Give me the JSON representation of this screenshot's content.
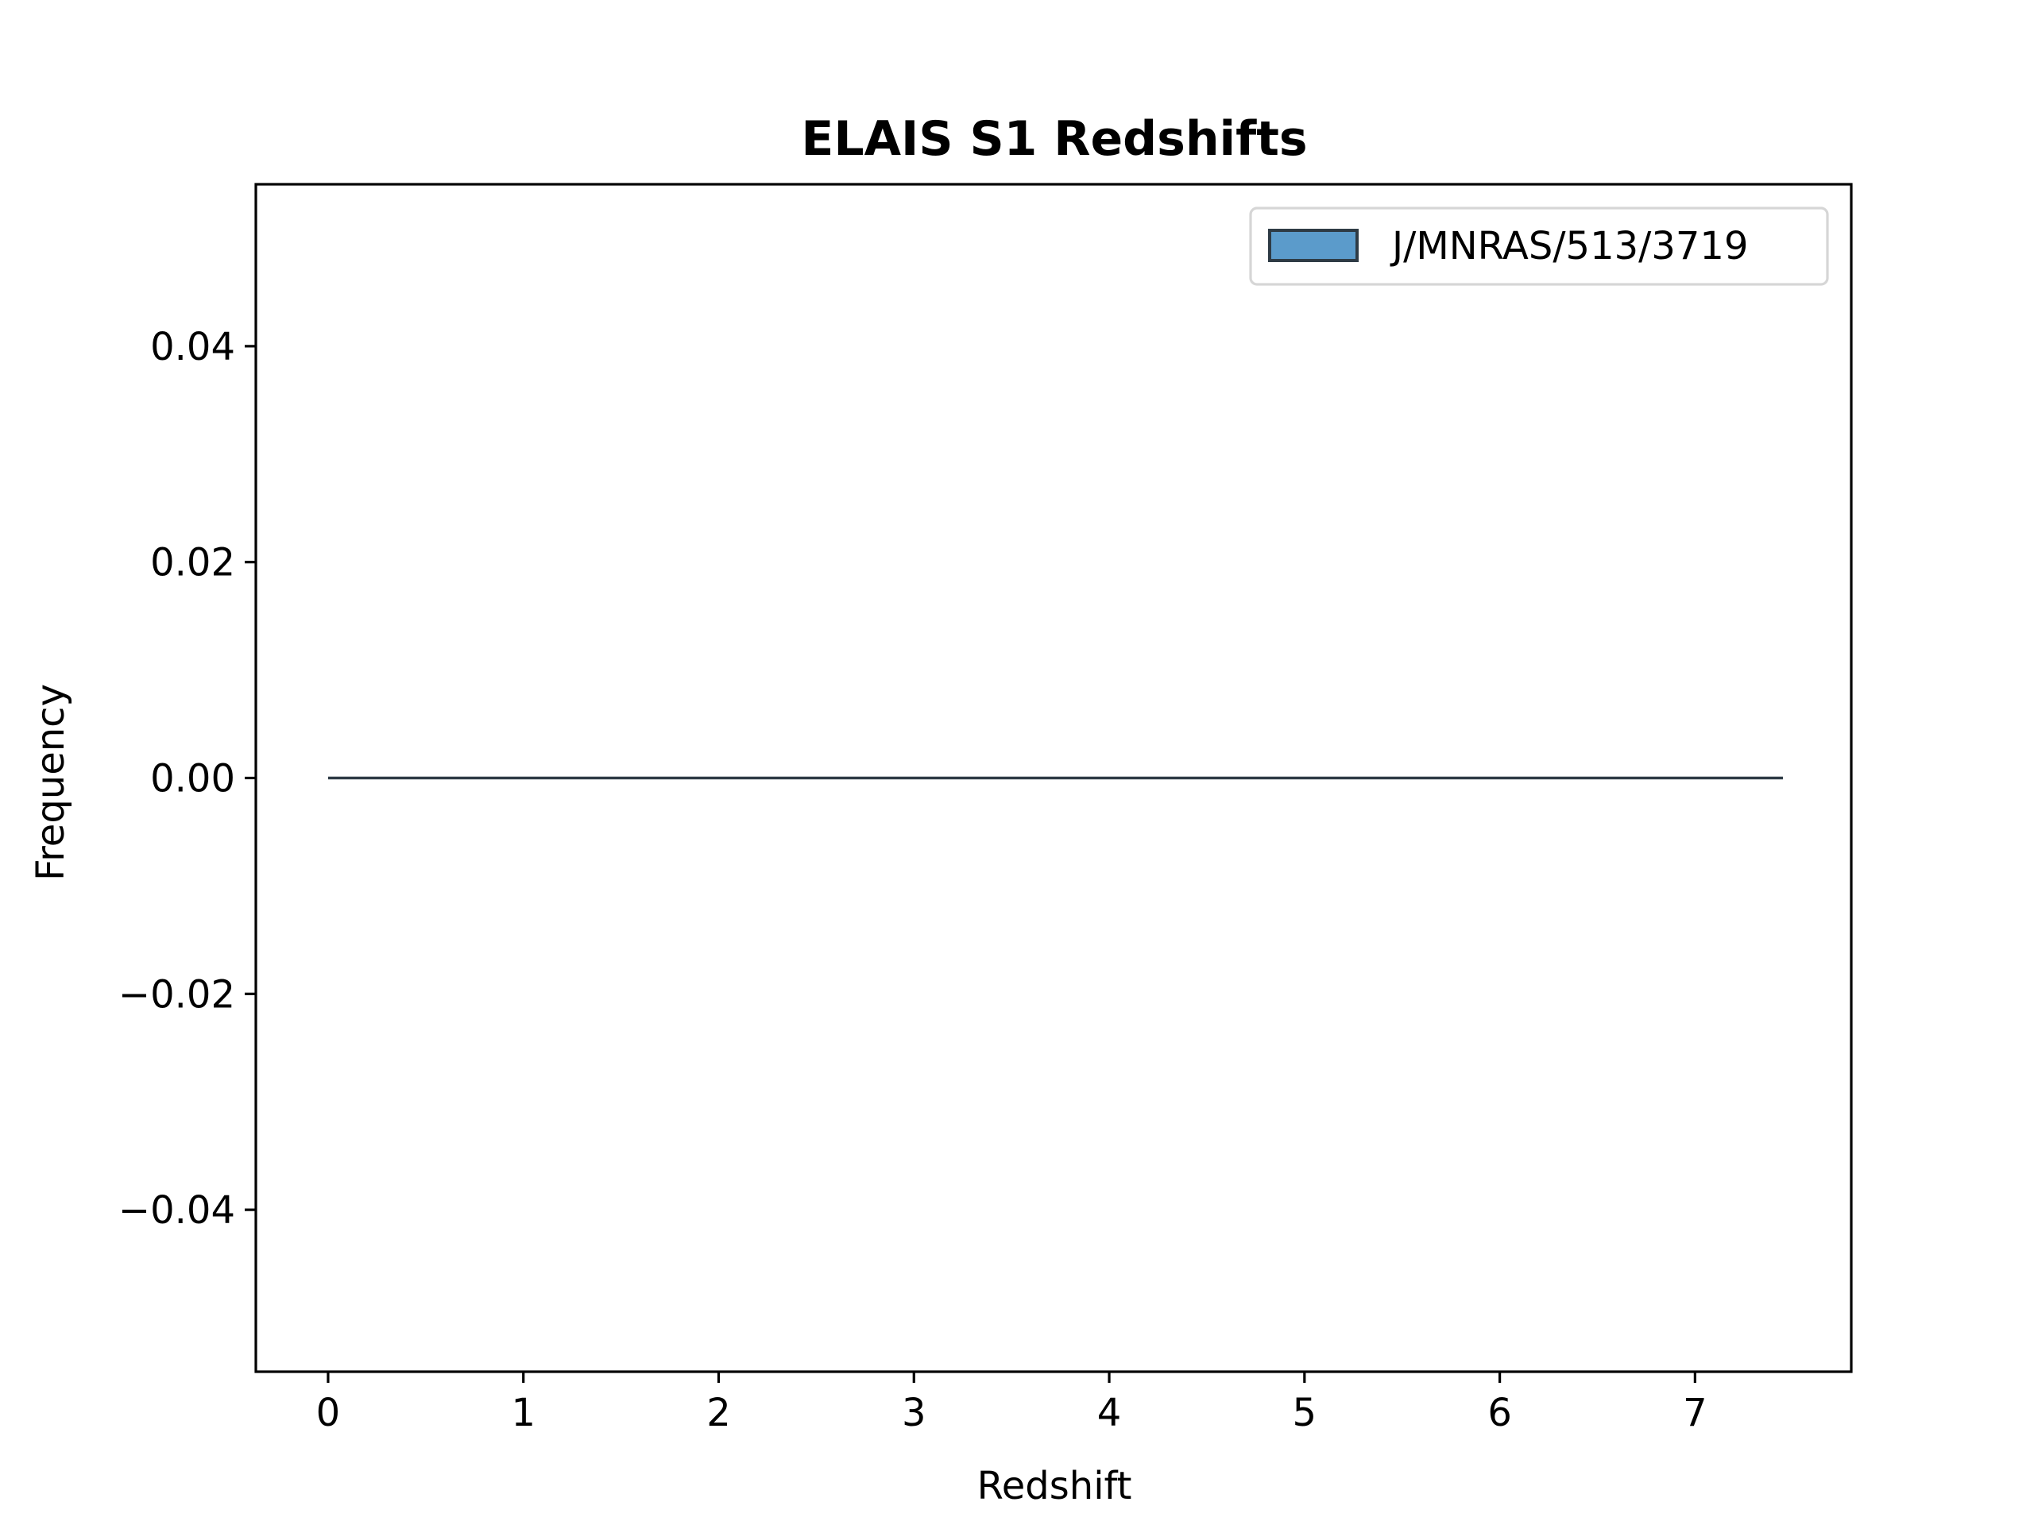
{
  "chart_data": {
    "type": "bar",
    "title": "ELAIS S1 Redshifts",
    "xlabel": "Redshift",
    "ylabel": "Frequency",
    "xlim": [
      -0.37,
      7.8
    ],
    "ylim": [
      -0.055,
      0.055
    ],
    "xticks": [
      0,
      1,
      2,
      3,
      4,
      5,
      6,
      7
    ],
    "xtick_labels": [
      "0",
      "1",
      "2",
      "3",
      "4",
      "5",
      "6",
      "7"
    ],
    "yticks": [
      0.04,
      0.02,
      0.0,
      -0.02,
      -0.04
    ],
    "ytick_labels": [
      "0.04",
      "0.02",
      "0.00",
      "−0.02",
      "−0.04"
    ],
    "grid": false,
    "legend_position": "top-right",
    "series": [
      {
        "name": "J/MNRAS/513/3719",
        "color": "#5b9bcb",
        "edge_color": "#2e3b45",
        "bins": [
          0,
          7.45
        ],
        "values": [
          0
        ]
      }
    ]
  }
}
